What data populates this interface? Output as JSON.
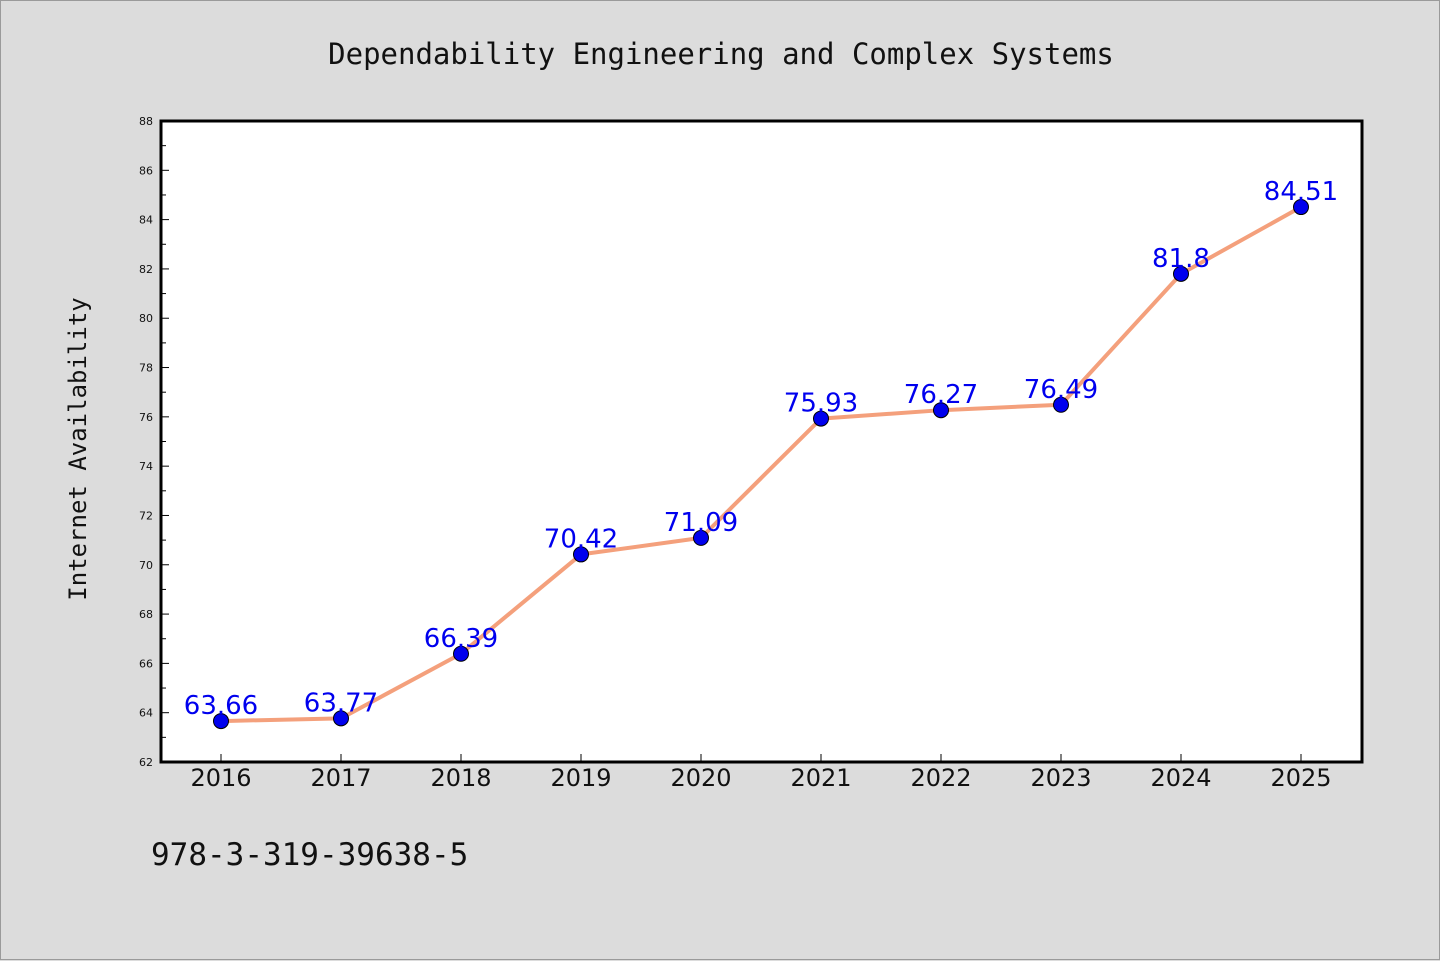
{
  "chart_data": {
    "type": "line",
    "title": "Dependability Engineering and Complex Systems",
    "xlabel": "",
    "ylabel": "Internet Availability",
    "categories": [
      "2016",
      "2017",
      "2018",
      "2019",
      "2020",
      "2021",
      "2022",
      "2023",
      "2024",
      "2025"
    ],
    "series": [
      {
        "values": [
          63.66,
          63.77,
          66.39,
          70.42,
          71.09,
          75.93,
          76.27,
          76.49,
          81.8,
          84.51
        ],
        "data_labels": [
          "63.66",
          "63.77",
          "66.39",
          "70.42",
          "71.09",
          "75.93",
          "76.27",
          "76.49",
          "81.8",
          "84.51"
        ],
        "line_color": "#f4a07c",
        "marker_color": "#0000ee"
      }
    ],
    "ylim": [
      62,
      88
    ],
    "y_ticks": [
      62,
      64,
      66,
      68,
      70,
      72,
      74,
      76,
      78,
      80,
      82,
      84,
      86,
      88
    ],
    "grid": false,
    "legend": "none"
  },
  "footer": {
    "code": "978-3-319-39638-5"
  },
  "colors": {
    "background": "#dcdcdc",
    "plot_background": "#ffffff",
    "axis": "#000000",
    "data_label": "#0000ee"
  }
}
